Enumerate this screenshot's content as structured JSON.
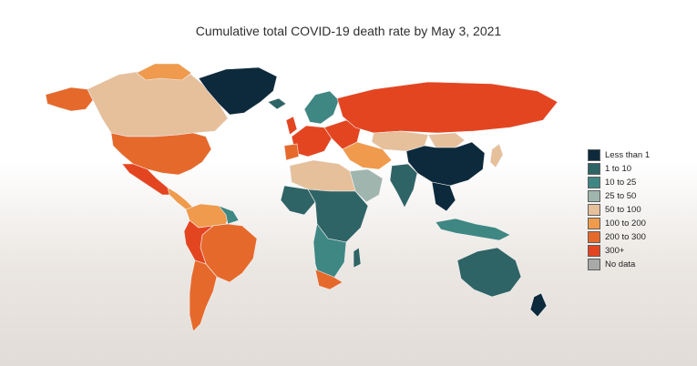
{
  "title": "Cumulative total COVID-19 death rate by May 3, 2021",
  "legend": {
    "items": [
      {
        "label": "Less than 1",
        "color": "#0d2a3c"
      },
      {
        "label": "1 to 10",
        "color": "#2f6466"
      },
      {
        "label": "10 to 25",
        "color": "#3f8783"
      },
      {
        "label": "25 to 50",
        "color": "#9fb5ad"
      },
      {
        "label": "50 to 100",
        "color": "#e6bf9b"
      },
      {
        "label": "100 to 200",
        "color": "#ef9a4c"
      },
      {
        "label": "200 to 300",
        "color": "#e6692c"
      },
      {
        "label": "300+",
        "color": "#e44521"
      },
      {
        "label": "No data",
        "color": "#a9a9a9"
      }
    ]
  }
}
